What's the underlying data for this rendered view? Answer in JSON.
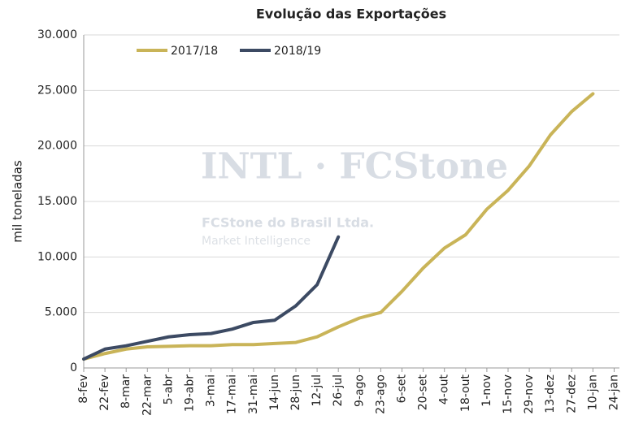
{
  "chart_data": {
    "type": "line",
    "title": "Evolução das Exportações",
    "y_label": "mil toneladas",
    "watermark": [
      "INTL · FCStone",
      "FCStone do Brasil Ltda.",
      "Market Intelligence"
    ],
    "categories": [
      "8-fev",
      "22-fev",
      "8-mar",
      "22-mar",
      "5-abr",
      "19-abr",
      "3-mai",
      "17-mai",
      "31-mai",
      "14-jun",
      "28-jun",
      "12-jul",
      "26-jul",
      "9-ago",
      "23-ago",
      "6-set",
      "20-set",
      "4-out",
      "18-out",
      "1-nov",
      "15-nov",
      "29-nov",
      "13-dez",
      "27-dez",
      "10-jan",
      "24-jan"
    ],
    "series": [
      {
        "name": "2017/18",
        "color": "#c9b458",
        "values": [
          800,
          1300,
          1700,
          1900,
          1950,
          2000,
          2000,
          2100,
          2100,
          2200,
          2300,
          2800,
          3700,
          4500,
          5000,
          6900,
          9000,
          10800,
          12000,
          14300,
          16000,
          18200,
          21000,
          23100,
          24700,
          null
        ]
      },
      {
        "name": "2018/19",
        "color": "#3c4a63",
        "values": [
          800,
          1700,
          2000,
          2400,
          2800,
          3000,
          3100,
          3500,
          4100,
          4300,
          5600,
          7500,
          11800,
          null,
          null,
          null,
          null,
          null,
          null,
          null,
          null,
          null,
          null,
          null,
          null,
          null
        ]
      }
    ],
    "ylim": [
      0,
      30000
    ],
    "yticks": [
      {
        "value": 0,
        "label": "0"
      },
      {
        "value": 5000,
        "label": "5.000"
      },
      {
        "value": 10000,
        "label": "10.000"
      },
      {
        "value": 15000,
        "label": "15.000"
      },
      {
        "value": 20000,
        "label": "20.000"
      },
      {
        "value": 25000,
        "label": "25.000"
      },
      {
        "value": 30000,
        "label": "30.000"
      }
    ],
    "grid": true,
    "legend": "top-left"
  }
}
